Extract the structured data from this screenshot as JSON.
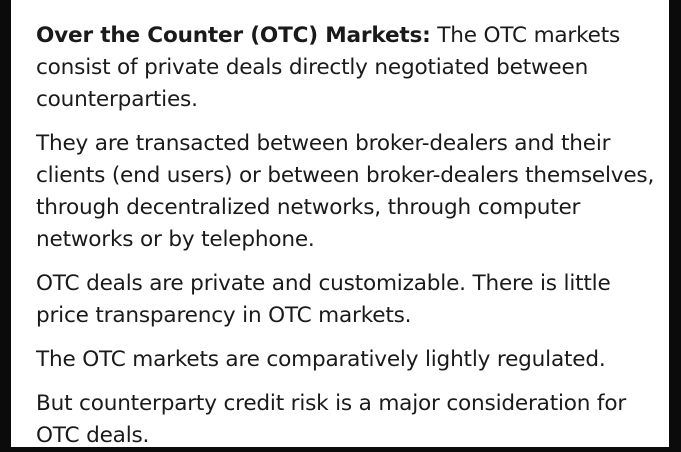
{
  "content": {
    "term": "Over the Counter (OTC) Markets:",
    "intro": "The OTC markets consist of private deals directly negotiated between counterparties.",
    "p2": "They are transacted between broker-dealers and their clients (end users) or between broker-dealers themselves, through decentralized networks, through computer networks or by telephone.",
    "p3": "OTC deals are private and customizable.  There is little price transparency in OTC markets.",
    "p4": "The OTC markets are comparatively lightly regulated.",
    "p5": "But counterparty credit risk is a major consideration for OTC deals."
  }
}
